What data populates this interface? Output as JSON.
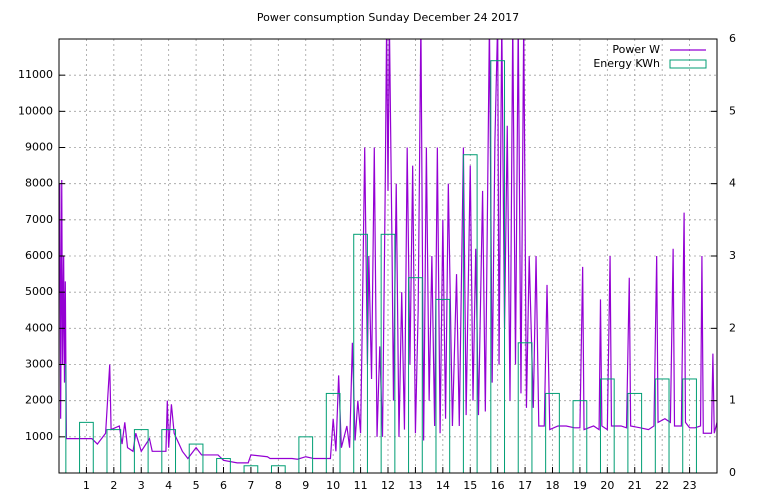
{
  "chart_data": {
    "type": "combo",
    "title": "Power consumption Sunday December 24 2017",
    "xlim": [
      0,
      24
    ],
    "xticks": [
      1,
      2,
      3,
      4,
      5,
      6,
      7,
      8,
      9,
      10,
      11,
      12,
      13,
      14,
      15,
      16,
      17,
      18,
      19,
      20,
      21,
      22,
      23
    ],
    "ylim": [
      0,
      12000
    ],
    "yticks": [
      1000,
      2000,
      3000,
      4000,
      5000,
      6000,
      7000,
      8000,
      9000,
      10000,
      11000
    ],
    "y2lim": [
      0,
      6
    ],
    "y2ticks": [
      0,
      1,
      2,
      3,
      4,
      5,
      6
    ],
    "grid": true,
    "legend": "top-right",
    "series": [
      {
        "name": "Power W",
        "color": "#9400d3",
        "type": "line",
        "x": [
          0,
          0.03,
          0.06,
          0.1,
          0.13,
          0.17,
          0.2,
          0.23,
          0.27,
          0.5,
          0.9,
          1.2,
          1.4,
          1.7,
          1.85,
          1.9,
          2.2,
          2.3,
          2.4,
          2.5,
          2.7,
          2.8,
          3.0,
          3.3,
          3.4,
          3.9,
          3.95,
          4.0,
          4.1,
          4.2,
          4.5,
          4.7,
          5.0,
          5.2,
          5.8,
          6.0,
          6.5,
          6.9,
          7.0,
          7.6,
          7.7,
          8.5,
          8.7,
          9.0,
          9.3,
          9.9,
          10.0,
          10.1,
          10.2,
          10.3,
          10.5,
          10.6,
          10.7,
          10.8,
          10.9,
          11.0,
          11.05,
          11.15,
          11.25,
          11.3,
          11.4,
          11.5,
          11.6,
          11.7,
          11.8,
          11.9,
          11.95,
          12.0,
          12.05,
          12.15,
          12.2,
          12.3,
          12.4,
          12.5,
          12.6,
          12.7,
          12.8,
          12.9,
          13.0,
          13.1,
          13.2,
          13.3,
          13.4,
          13.5,
          13.6,
          13.7,
          13.8,
          13.9,
          14.0,
          14.1,
          14.2,
          14.35,
          14.5,
          14.6,
          14.75,
          14.85,
          15.0,
          15.1,
          15.2,
          15.3,
          15.45,
          15.55,
          15.7,
          15.8,
          15.9,
          16.0,
          16.05,
          16.15,
          16.25,
          16.35,
          16.45,
          16.55,
          16.65,
          16.75,
          16.85,
          16.95,
          17.05,
          17.15,
          17.3,
          17.4,
          17.5,
          17.7,
          17.8,
          17.9,
          18.2,
          18.5,
          18.8,
          19.0,
          19.1,
          19.15,
          19.5,
          19.7,
          19.75,
          19.8,
          20.0,
          20.1,
          20.15,
          20.5,
          20.7,
          20.8,
          20.85,
          21.2,
          21.5,
          21.7,
          21.8,
          21.85,
          22.1,
          22.3,
          22.4,
          22.45,
          22.7,
          22.8,
          22.85,
          23.0,
          23.2,
          23.4,
          23.45,
          23.5,
          23.8,
          23.85,
          23.9,
          24.0
        ],
        "values": [
          5000,
          8000,
          1500,
          8100,
          3000,
          6000,
          2500,
          5300,
          950,
          950,
          950,
          950,
          800,
          1100,
          3000,
          1200,
          1300,
          800,
          1400,
          700,
          600,
          1100,
          600,
          950,
          600,
          600,
          2000,
          700,
          1900,
          1100,
          600,
          400,
          700,
          500,
          500,
          350,
          280,
          280,
          500,
          450,
          400,
          400,
          380,
          450,
          400,
          400,
          1500,
          600,
          2700,
          700,
          1300,
          700,
          3600,
          900,
          2000,
          1100,
          3500,
          9000,
          3000,
          6000,
          2600,
          9000,
          1000,
          3500,
          1000,
          8000,
          12500,
          7800,
          12500,
          6000,
          2000,
          8000,
          1000,
          5000,
          1200,
          9000,
          3000,
          8500,
          1100,
          4500,
          12500,
          900,
          9000,
          2000,
          6000,
          1300,
          9000,
          1100,
          7000,
          1500,
          8000,
          1300,
          5500,
          1300,
          9000,
          1600,
          8500,
          2000,
          6200,
          1600,
          7800,
          1700,
          12500,
          2500,
          9200,
          12500,
          3000,
          12500,
          4000,
          9600,
          2000,
          12500,
          3000,
          12500,
          2200,
          12500,
          1800,
          6000,
          1800,
          6000,
          1300,
          1300,
          5200,
          1200,
          1300,
          1300,
          1250,
          1250,
          5700,
          1200,
          1300,
          1200,
          4800,
          1300,
          1200,
          6000,
          1300,
          1300,
          1250,
          5400,
          1300,
          1250,
          1200,
          1300,
          6000,
          1400,
          1500,
          1400,
          6200,
          1300,
          1300,
          7200,
          1400,
          1250,
          1250,
          1300,
          6000,
          1100,
          1100,
          3300,
          1100,
          1400
        ]
      },
      {
        "name": "Energy KWh",
        "color": "#009e73",
        "type": "bar",
        "axis": "y2",
        "x": [
          0,
          1,
          2,
          3,
          4,
          5,
          6,
          7,
          8,
          9,
          10,
          11,
          12,
          13,
          14,
          15,
          16,
          17,
          18,
          19,
          20,
          21,
          22,
          23
        ],
        "values": [
          1.5,
          0.7,
          0.6,
          0.6,
          0.6,
          0.4,
          0.2,
          0.1,
          0.1,
          0.5,
          1.1,
          3.3,
          3.3,
          2.7,
          2.4,
          4.4,
          5.7,
          1.8,
          1.1,
          1.0,
          1.3,
          1.1,
          1.3,
          1.3
        ]
      }
    ]
  }
}
